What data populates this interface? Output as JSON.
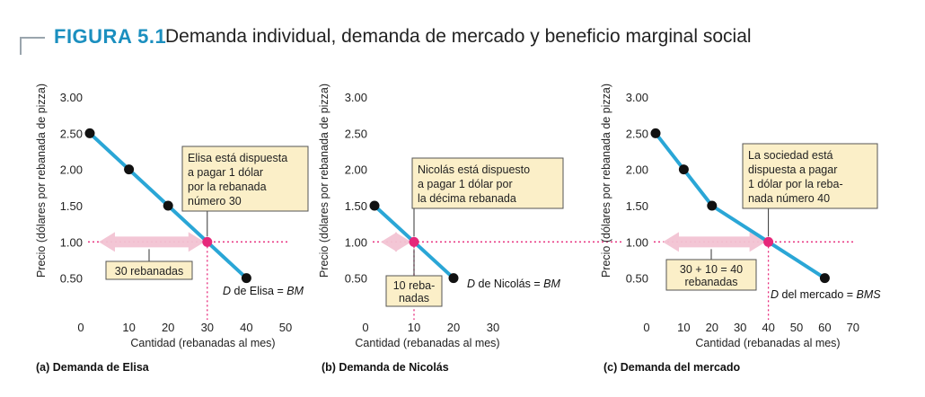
{
  "figure": {
    "label": "FIGURA 5.1",
    "title": "Demanda individual, demanda de mercado y beneficio marginal social"
  },
  "colors": {
    "accent": "#1b8fbf",
    "line": "#2aa6d6",
    "highlight": "#e6287a",
    "arrow": "#f2c3d3",
    "note_bg": "#fbefc8",
    "point": "#111111"
  },
  "chart_data": [
    {
      "type": "line",
      "panel_title": "(a) Demanda de Elisa",
      "xlabel": "Cantidad (rebanadas al mes)",
      "ylabel": "Precio (dólares por rebanada de pizza)",
      "xlim": [
        0,
        50
      ],
      "ylim": [
        0,
        3.0
      ],
      "x_ticks": [
        "0",
        "10",
        "20",
        "30",
        "40",
        "50"
      ],
      "y_ticks": [
        "0.50",
        "1.00",
        "1.50",
        "2.00",
        "2.50",
        "3.00"
      ],
      "points": [
        [
          0,
          2.5
        ],
        [
          10,
          2.0
        ],
        [
          20,
          1.5
        ],
        [
          40,
          0.5
        ]
      ],
      "highlight": {
        "x": 30,
        "y": 1.0,
        "x_label": "30",
        "y_label": "1.00"
      },
      "curve_label": [
        "D",
        " de Elisa = ",
        "BM"
      ],
      "note": [
        "Elisa está dispuesta",
        "a pagar 1 dólar",
        "por la rebanada",
        "número 30"
      ],
      "arrow_label": [
        "30 rebanadas"
      ]
    },
    {
      "type": "line",
      "panel_title": "(b) Demanda de Nicolás",
      "xlabel": "Cantidad (rebanadas al mes)",
      "ylabel": "Precio (dólares por rebanada de pizza)",
      "xlim": [
        0,
        30
      ],
      "ylim": [
        0,
        3.0
      ],
      "x_ticks": [
        "0",
        "10",
        "20",
        "30"
      ],
      "y_ticks": [
        "0.50",
        "1.00",
        "1.50",
        "2.00",
        "2.50",
        "3.00"
      ],
      "points": [
        [
          0,
          1.5
        ],
        [
          20,
          0.5
        ]
      ],
      "highlight": {
        "x": 10,
        "y": 1.0,
        "x_label": "10",
        "y_label": "1.00"
      },
      "curve_label": [
        "D",
        " de Nicolás = ",
        "BM"
      ],
      "note": [
        "Nicolás está dispuesto",
        "a pagar 1 dólar por",
        "la décima rebanada"
      ],
      "arrow_label": [
        "10 reba-",
        "nadas"
      ]
    },
    {
      "type": "line",
      "panel_title": "(c) Demanda del mercado",
      "xlabel": "Cantidad (rebanadas al mes)",
      "ylabel": "Precio (dólares por rebanada de pizza)",
      "xlim": [
        0,
        70
      ],
      "ylim": [
        0,
        3.0
      ],
      "x_ticks": [
        "0",
        "10",
        "20",
        "30",
        "40",
        "50",
        "60",
        "70"
      ],
      "y_ticks": [
        "0.50",
        "1.00",
        "1.50",
        "2.00",
        "2.50",
        "3.00"
      ],
      "points": [
        [
          0,
          2.5
        ],
        [
          10,
          2.0
        ],
        [
          20,
          1.5
        ],
        [
          60,
          0.5
        ]
      ],
      "highlight": {
        "x": 40,
        "y": 1.0,
        "x_label": "40",
        "y_label": "1.00"
      },
      "curve_label": [
        "D",
        " del mercado = ",
        "BMS"
      ],
      "note": [
        "La sociedad está",
        "dispuesta a pagar",
        "1 dólar por la reba-",
        "nada número 40"
      ],
      "arrow_label": [
        "30 + 10 = 40",
        "rebanadas"
      ]
    }
  ]
}
